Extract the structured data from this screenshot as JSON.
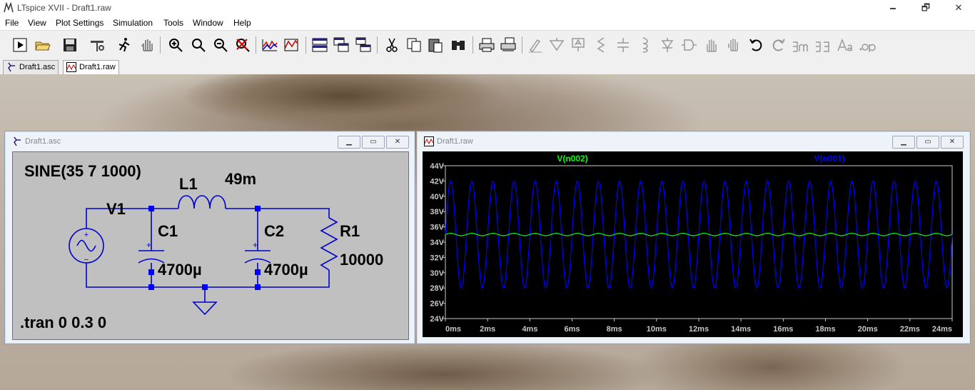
{
  "app": {
    "title": "LTspice XVII - Draft1.raw",
    "window_buttons": {
      "minimize": "🗕",
      "restore": "🗗",
      "close": "✕"
    }
  },
  "menu": [
    {
      "label": "File"
    },
    {
      "label": "View"
    },
    {
      "label": "Plot Settings"
    },
    {
      "label": "Simulation"
    },
    {
      "label": "Tools"
    },
    {
      "label": "Window"
    },
    {
      "label": "Help"
    }
  ],
  "toolbar": {
    "icons": [
      "run-icon",
      "open-icon",
      "save-icon",
      "control-panel-icon",
      "halt-icon",
      "pan-icon",
      "zoom-in-icon",
      "zoom-area-icon",
      "zoom-out-icon",
      "zoom-fit-icon",
      "autorange-icon",
      "mark-icon",
      "tile-horizontal-icon",
      "cascade-icon",
      "tile-vertical-icon",
      "cut-icon",
      "copy-icon",
      "paste-icon",
      "find-icon",
      "print-icon",
      "print-setup-icon",
      "wire-icon",
      "ground-icon",
      "label-net-icon",
      "resistor-icon",
      "capacitor-icon",
      "inductor-icon",
      "diode-icon",
      "component-icon",
      "move-icon",
      "drag-icon",
      "undo-icon",
      "redo-icon",
      "rotate-icon",
      "mirror-icon",
      "text-icon",
      "spice-directive-icon"
    ]
  },
  "tabs": [
    {
      "label": "Draft1.asc"
    },
    {
      "label": "Draft1.raw"
    }
  ],
  "schematic_window": {
    "caption": "Draft1.asc",
    "source_directive": "SINE(35 7 1000)",
    "v1_label": "V1",
    "l1_label": "L1",
    "l1_value": "49m",
    "c1_label": "C1",
    "c1_value": "4700µ",
    "c2_label": "C2",
    "c2_value": "4700µ",
    "r1_label": "R1",
    "r1_value": "10000",
    "tran_directive": ".tran 0 0.3 0",
    "plus_sign": "+",
    "minus_sign": "−",
    "wire_color": "#0000cc"
  },
  "plot_window": {
    "caption": "Draft1.raw",
    "traces": [
      {
        "name": "V(n002)",
        "color": "#00ff00"
      },
      {
        "name": "V(n001)",
        "color": "#0000ff"
      }
    ],
    "chart_data": {
      "type": "line",
      "title": "",
      "xlabel": "",
      "ylabel": "",
      "x_ticks": [
        "0ms",
        "2ms",
        "4ms",
        "6ms",
        "8ms",
        "10ms",
        "12ms",
        "14ms",
        "16ms",
        "18ms",
        "20ms",
        "22ms",
        "24ms"
      ],
      "y_ticks": [
        "24V",
        "26V",
        "28V",
        "30V",
        "32V",
        "34V",
        "36V",
        "38V",
        "40V",
        "42V",
        "44V"
      ],
      "xlim_ms": [
        0,
        24
      ],
      "ylim_v": [
        24,
        44
      ],
      "series": [
        {
          "name": "V(n001)",
          "type": "sine",
          "offset_v": 35,
          "amplitude_v": 7,
          "frequency_hz": 1000,
          "end_ms": 24
        },
        {
          "name": "V(n002)",
          "type": "ripple",
          "offset_v": 35,
          "amplitude_v": 0.15,
          "frequency_hz": 1000,
          "end_ms": 24
        }
      ]
    }
  }
}
